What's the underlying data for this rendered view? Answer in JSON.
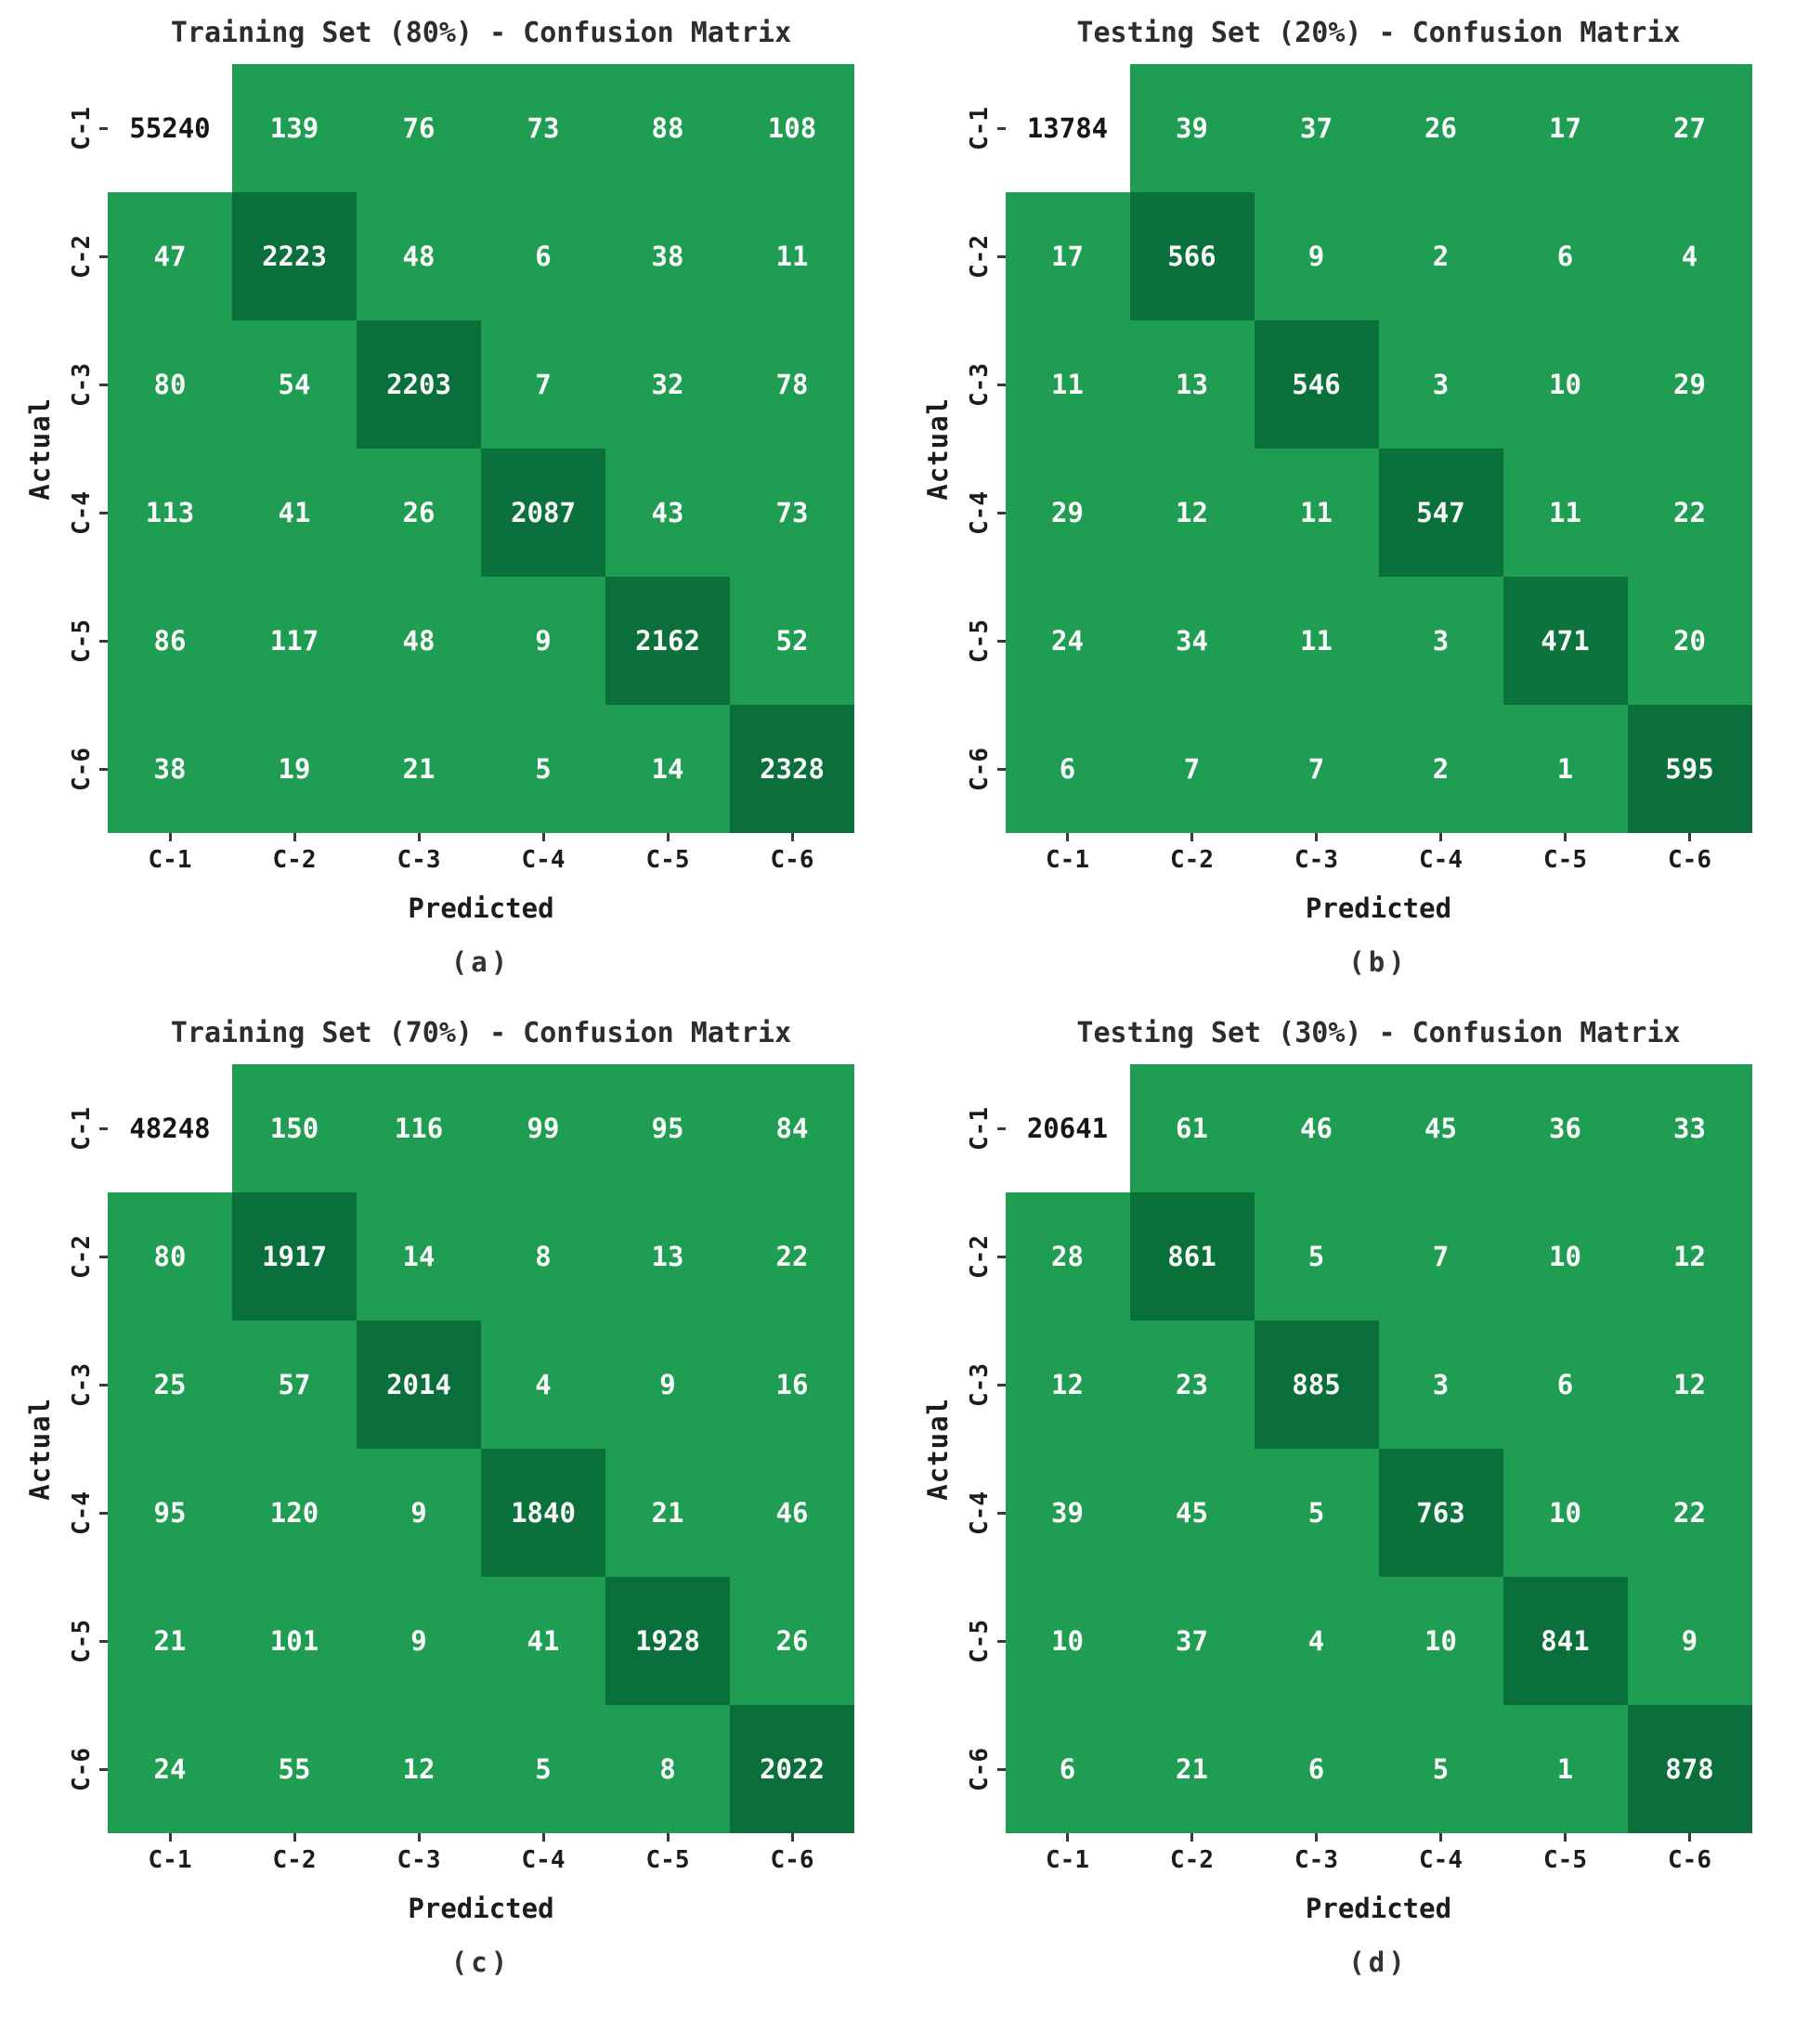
{
  "figure": {
    "background": "#ffffff"
  },
  "colors": {
    "off_diagonal_bg": "#1f9d53",
    "diagonal_bg_light": "#13824a",
    "diagonal_bg_dark": "#0a6f3a",
    "max_cell_bg": "#ffffff",
    "max_cell_text": "#161616",
    "cell_text": "#fafafa",
    "axis_text": "#1c1c1c",
    "title_text": "#2d2d2d",
    "tick_color": "#3a3a3a"
  },
  "chart_data": [
    {
      "type": "heatmap",
      "title": "Training Set (80%) - Confusion Matrix",
      "caption": "(a)",
      "xlabel": "Predicted",
      "ylabel": "Actual",
      "x_labels": [
        "C-1",
        "C-2",
        "C-3",
        "C-4",
        "C-5",
        "C-6"
      ],
      "y_labels": [
        "C-1",
        "C-2",
        "C-3",
        "C-4",
        "C-5",
        "C-6"
      ],
      "values": [
        [
          55240,
          139,
          76,
          73,
          88,
          108
        ],
        [
          47,
          2223,
          48,
          6,
          38,
          11
        ],
        [
          80,
          54,
          2203,
          7,
          32,
          78
        ],
        [
          113,
          41,
          26,
          2087,
          43,
          73
        ],
        [
          86,
          117,
          48,
          9,
          2162,
          52
        ],
        [
          38,
          19,
          21,
          5,
          14,
          2328
        ]
      ]
    },
    {
      "type": "heatmap",
      "title": "Testing Set (20%) - Confusion Matrix",
      "caption": "(b)",
      "xlabel": "Predicted",
      "ylabel": "Actual",
      "x_labels": [
        "C-1",
        "C-2",
        "C-3",
        "C-4",
        "C-5",
        "C-6"
      ],
      "y_labels": [
        "C-1",
        "C-2",
        "C-3",
        "C-4",
        "C-5",
        "C-6"
      ],
      "values": [
        [
          13784,
          39,
          37,
          26,
          17,
          27
        ],
        [
          17,
          566,
          9,
          2,
          6,
          4
        ],
        [
          11,
          13,
          546,
          3,
          10,
          29
        ],
        [
          29,
          12,
          11,
          547,
          11,
          22
        ],
        [
          24,
          34,
          11,
          3,
          471,
          20
        ],
        [
          6,
          7,
          7,
          2,
          1,
          595
        ]
      ]
    },
    {
      "type": "heatmap",
      "title": "Training Set (70%) - Confusion Matrix",
      "caption": "(c)",
      "xlabel": "Predicted",
      "ylabel": "Actual",
      "x_labels": [
        "C-1",
        "C-2",
        "C-3",
        "C-4",
        "C-5",
        "C-6"
      ],
      "y_labels": [
        "C-1",
        "C-2",
        "C-3",
        "C-4",
        "C-5",
        "C-6"
      ],
      "values": [
        [
          48248,
          150,
          116,
          99,
          95,
          84
        ],
        [
          80,
          1917,
          14,
          8,
          13,
          22
        ],
        [
          25,
          57,
          2014,
          4,
          9,
          16
        ],
        [
          95,
          120,
          9,
          1840,
          21,
          46
        ],
        [
          21,
          101,
          9,
          41,
          1928,
          26
        ],
        [
          24,
          55,
          12,
          5,
          8,
          2022
        ]
      ]
    },
    {
      "type": "heatmap",
      "title": "Testing Set (30%) - Confusion Matrix",
      "caption": "(d)",
      "xlabel": "Predicted",
      "ylabel": "Actual",
      "x_labels": [
        "C-1",
        "C-2",
        "C-3",
        "C-4",
        "C-5",
        "C-6"
      ],
      "y_labels": [
        "C-1",
        "C-2",
        "C-3",
        "C-4",
        "C-5",
        "C-6"
      ],
      "values": [
        [
          20641,
          61,
          46,
          45,
          36,
          33
        ],
        [
          28,
          861,
          5,
          7,
          10,
          12
        ],
        [
          12,
          23,
          885,
          3,
          6,
          12
        ],
        [
          39,
          45,
          5,
          763,
          10,
          22
        ],
        [
          10,
          37,
          4,
          10,
          841,
          9
        ],
        [
          6,
          21,
          6,
          5,
          1,
          878
        ]
      ]
    }
  ]
}
